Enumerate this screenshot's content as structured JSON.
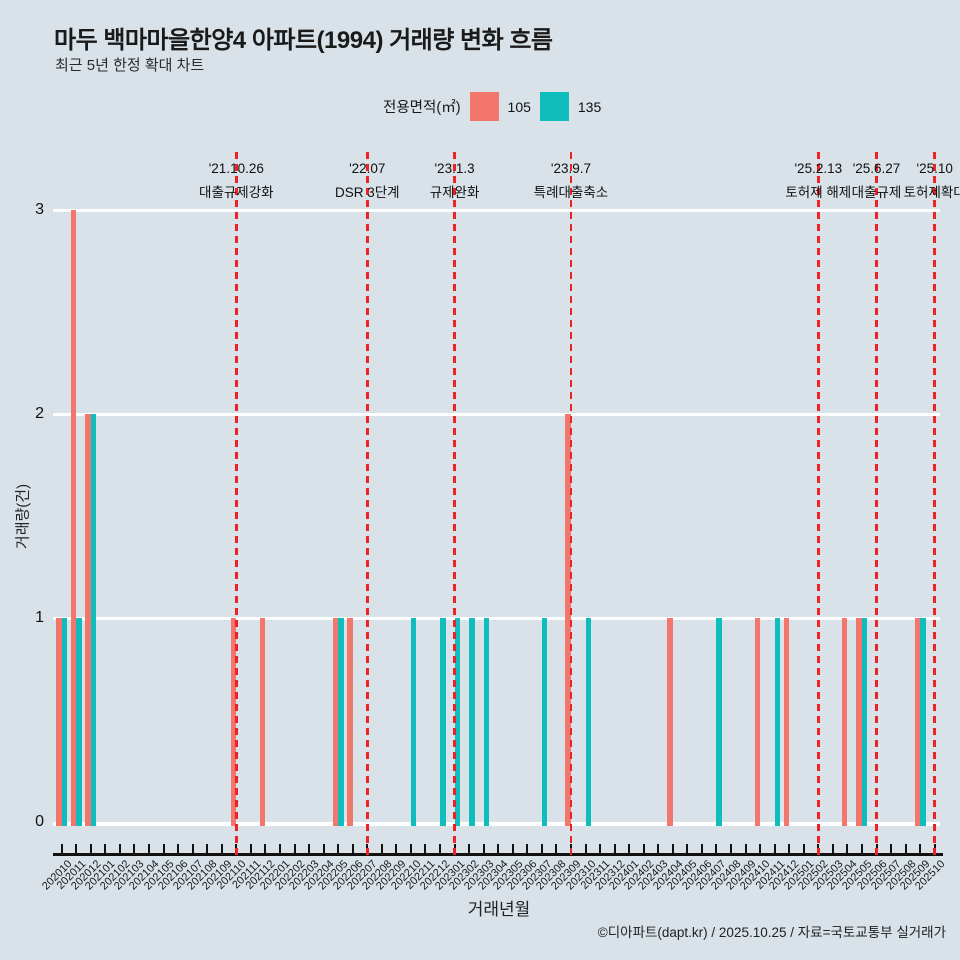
{
  "page": {
    "title": "마두 백마마을한양4 아파트(1994) 거래량 변화 흐름",
    "subtitle": "최근 5년 한정 확대 차트",
    "footer": "©디아파트(dapt.kr) / 2025.10.25 / 자료=국토교통부 실거래가"
  },
  "legend": {
    "title": "전용면적(㎡)"
  },
  "colors": {
    "background": "#d8e2e8",
    "grid": "#ffffff",
    "axis": "#111111",
    "series_105": "#f3766c",
    "series_135": "#10bdbd",
    "event_line": "#ee2125"
  },
  "chart_data": {
    "type": "bar",
    "title": "마두 백마마을한양4 아파트(1994) 거래량 변화 흐름",
    "subtitle": "최근 5년 한정 확대 차트",
    "xlabel": "거래년월",
    "ylabel": "거래량(건)",
    "ylim": [
      0,
      3
    ],
    "yticks": [
      0,
      1,
      2,
      3
    ],
    "grid": true,
    "legend_position": "top",
    "categories": [
      "202010",
      "202011",
      "202012",
      "202101",
      "202102",
      "202103",
      "202104",
      "202105",
      "202106",
      "202107",
      "202108",
      "202109",
      "202110",
      "202111",
      "202112",
      "202201",
      "202202",
      "202203",
      "202204",
      "202205",
      "202206",
      "202207",
      "202208",
      "202209",
      "202210",
      "202211",
      "202212",
      "202301",
      "202302",
      "202303",
      "202304",
      "202305",
      "202306",
      "202307",
      "202308",
      "202309",
      "202310",
      "202311",
      "202312",
      "202401",
      "202402",
      "202403",
      "202404",
      "202405",
      "202406",
      "202407",
      "202408",
      "202409",
      "202410",
      "202411",
      "202412",
      "202501",
      "202502",
      "202503",
      "202504",
      "202505",
      "202506",
      "202507",
      "202508",
      "202509",
      "202510"
    ],
    "series": [
      {
        "name": "105",
        "color": "#f3766c",
        "values": [
          1,
          3,
          2,
          0,
          0,
          0,
          0,
          0,
          0,
          0,
          0,
          0,
          1,
          0,
          1,
          0,
          0,
          0,
          0,
          1,
          1,
          0,
          0,
          0,
          0,
          0,
          0,
          0,
          0,
          0,
          0,
          0,
          0,
          0,
          0,
          2,
          0,
          0,
          0,
          0,
          0,
          0,
          1,
          0,
          0,
          0,
          0,
          0,
          1,
          0,
          1,
          0,
          0,
          0,
          1,
          1,
          0,
          0,
          0,
          1,
          0
        ]
      },
      {
        "name": "135",
        "color": "#10bdbd",
        "values": [
          1,
          1,
          2,
          0,
          0,
          0,
          0,
          0,
          0,
          0,
          0,
          0,
          0,
          0,
          0,
          0,
          0,
          0,
          0,
          1,
          0,
          0,
          0,
          0,
          1,
          0,
          1,
          1,
          1,
          1,
          0,
          0,
          0,
          1,
          0,
          0,
          1,
          0,
          0,
          0,
          0,
          0,
          0,
          0,
          0,
          1,
          0,
          0,
          0,
          1,
          0,
          0,
          0,
          0,
          0,
          1,
          0,
          0,
          0,
          1,
          0
        ]
      }
    ],
    "event_lines": [
      {
        "date": "'21.10.26",
        "label": "대출규제강화",
        "month": "202110"
      },
      {
        "date": "'22.07",
        "label": "DSR 3단계",
        "month": "202207"
      },
      {
        "date": "'23.1.3",
        "label": "규제완화",
        "month": "202301"
      },
      {
        "date": "'23.9.7",
        "label": "특례대출축소",
        "month": "202309"
      },
      {
        "date": "'25.2.13",
        "label": "토허제 해제",
        "month": "202502"
      },
      {
        "date": "'25.6.27",
        "label": "대출규제",
        "month": "202506"
      },
      {
        "date": "'25.10",
        "label": "토허제확대",
        "month": "202510"
      }
    ]
  }
}
